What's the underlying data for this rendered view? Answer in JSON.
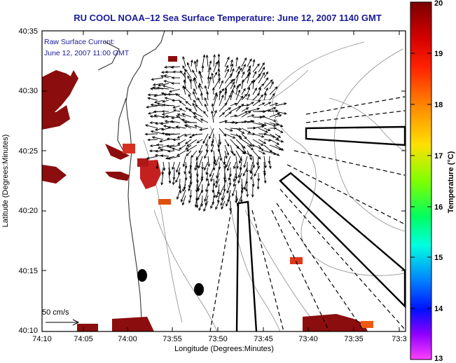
{
  "title": "RU COOL   NOAA–12  Sea Surface Temperature:  June 12, 2007 1140 GMT",
  "current_note": {
    "line1": "Raw Surface Current:",
    "line2": "June 12, 2007 11:00 GMT"
  },
  "axes": {
    "xlabel": "Longitude (Degrees:Minutes)",
    "ylabel": "Latitude (Degrees:Minutes)",
    "x_ticks": [
      "74:10",
      "74:05",
      "74:00",
      "73:55",
      "73:50",
      "73:45",
      "73:40",
      "73:35",
      "73:3"
    ],
    "y_ticks": [
      "40:35",
      "40:30",
      "40:25",
      "40:20",
      "40:15",
      "40:10"
    ]
  },
  "scale_arrow_label": "50 cm/s",
  "colorbar": {
    "label": "Temperature (°C)",
    "ticks": [
      "20",
      "19",
      "18",
      "17",
      "16",
      "15",
      "14",
      "13"
    ],
    "min": 13,
    "max": 20
  },
  "colors": {
    "warm": "#8b0d0d",
    "accent_title": "#1a1a9c"
  }
}
